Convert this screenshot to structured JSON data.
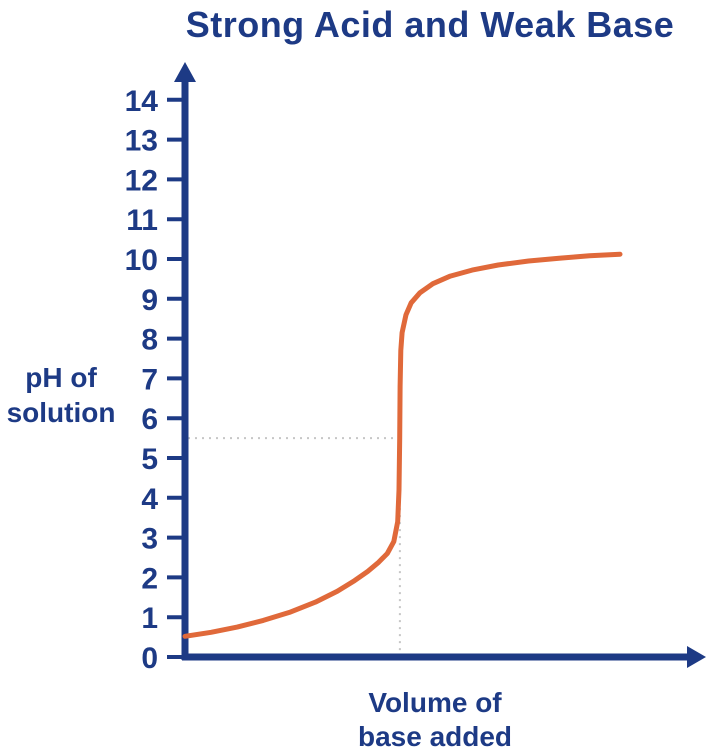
{
  "colors": {
    "axis": "#1d3a85",
    "text": "#1d3a85",
    "curve": "#e0693a",
    "dotted": "#c6c6c6",
    "background": "#ffffff"
  },
  "chart_data": {
    "type": "line",
    "title": "Strong Acid and Weak Base",
    "xlabel": "Volume of base added",
    "xlabel_lines": [
      "Volume of",
      "base added"
    ],
    "ylabel": "pH of solution",
    "ylabel_lines": [
      "pH of",
      "solution"
    ],
    "ylim": [
      0,
      14
    ],
    "yticks": [
      0,
      1,
      2,
      3,
      4,
      5,
      6,
      7,
      8,
      9,
      10,
      11,
      12,
      13,
      14
    ],
    "x_axis_tick_labels": "none (unlabeled volume axis)",
    "grid": false,
    "legend": false,
    "equivalence": {
      "x": 49.4,
      "dotted_ph": 5.5
    },
    "series": [
      {
        "name": "titration curve (pH vs volume of base added)",
        "points": [
          [
            0,
            0.52
          ],
          [
            6,
            0.62
          ],
          [
            12,
            0.75
          ],
          [
            18,
            0.92
          ],
          [
            24,
            1.12
          ],
          [
            30,
            1.38
          ],
          [
            35,
            1.65
          ],
          [
            39,
            1.92
          ],
          [
            42,
            2.15
          ],
          [
            44.5,
            2.38
          ],
          [
            46.5,
            2.6
          ],
          [
            48,
            2.9
          ],
          [
            48.9,
            3.4
          ],
          [
            49.2,
            4.2
          ],
          [
            49.35,
            5.5
          ],
          [
            49.45,
            6.8
          ],
          [
            49.6,
            7.7
          ],
          [
            49.9,
            8.15
          ],
          [
            50.8,
            8.6
          ],
          [
            52,
            8.9
          ],
          [
            54,
            9.15
          ],
          [
            57,
            9.38
          ],
          [
            61,
            9.57
          ],
          [
            66,
            9.72
          ],
          [
            72,
            9.85
          ],
          [
            79,
            9.95
          ],
          [
            86,
            10.02
          ],
          [
            93,
            10.08
          ],
          [
            100,
            10.12
          ]
        ]
      }
    ]
  }
}
